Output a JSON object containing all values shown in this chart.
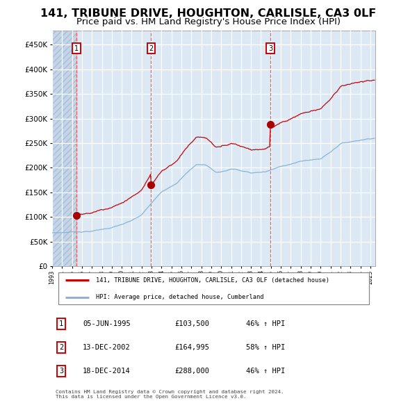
{
  "title": "141, TRIBUNE DRIVE, HOUGHTON, CARLISLE, CA3 0LF",
  "subtitle": "Price paid vs. HM Land Registry's House Price Index (HPI)",
  "title_fontsize": 11.5,
  "subtitle_fontsize": 9.5,
  "background_color": "#dce9f5",
  "grid_color": "#ffffff",
  "red_line_color": "#cc0000",
  "blue_line_color": "#8ab4d4",
  "dashed_color": "#ff5555",
  "sale_marker_color": "#aa0000",
  "sale_dot_size": 7,
  "sale_events": [
    {
      "label": "1",
      "date_num": 1995.43,
      "price": 103500
    },
    {
      "label": "2",
      "date_num": 2002.95,
      "price": 164995
    },
    {
      "label": "3",
      "date_num": 2014.96,
      "price": 288000
    }
  ],
  "ytick_values": [
    0,
    50000,
    100000,
    150000,
    200000,
    250000,
    300000,
    350000,
    400000,
    450000
  ],
  "ylim": [
    0,
    478000
  ],
  "xlim_start": 1993.0,
  "xlim_end": 2025.5,
  "legend_red_label": "141, TRIBUNE DRIVE, HOUGHTON, CARLISLE, CA3 0LF (detached house)",
  "legend_blue_label": "HPI: Average price, detached house, Cumberland",
  "table_rows": [
    [
      "1",
      "05-JUN-1995",
      "£103,500",
      "46% ↑ HPI"
    ],
    [
      "2",
      "13-DEC-2002",
      "£164,995",
      "58% ↑ HPI"
    ],
    [
      "3",
      "18-DEC-2014",
      "£288,000",
      "46% ↑ HPI"
    ]
  ],
  "footer_text": "Contains HM Land Registry data © Crown copyright and database right 2024.\nThis data is licensed under the Open Government Licence v3.0.",
  "xtick_years": [
    1993,
    1994,
    1995,
    1996,
    1997,
    1998,
    1999,
    2000,
    2001,
    2002,
    2003,
    2004,
    2005,
    2006,
    2007,
    2008,
    2009,
    2010,
    2011,
    2012,
    2013,
    2014,
    2015,
    2016,
    2017,
    2018,
    2019,
    2020,
    2021,
    2022,
    2023,
    2024,
    2025
  ]
}
